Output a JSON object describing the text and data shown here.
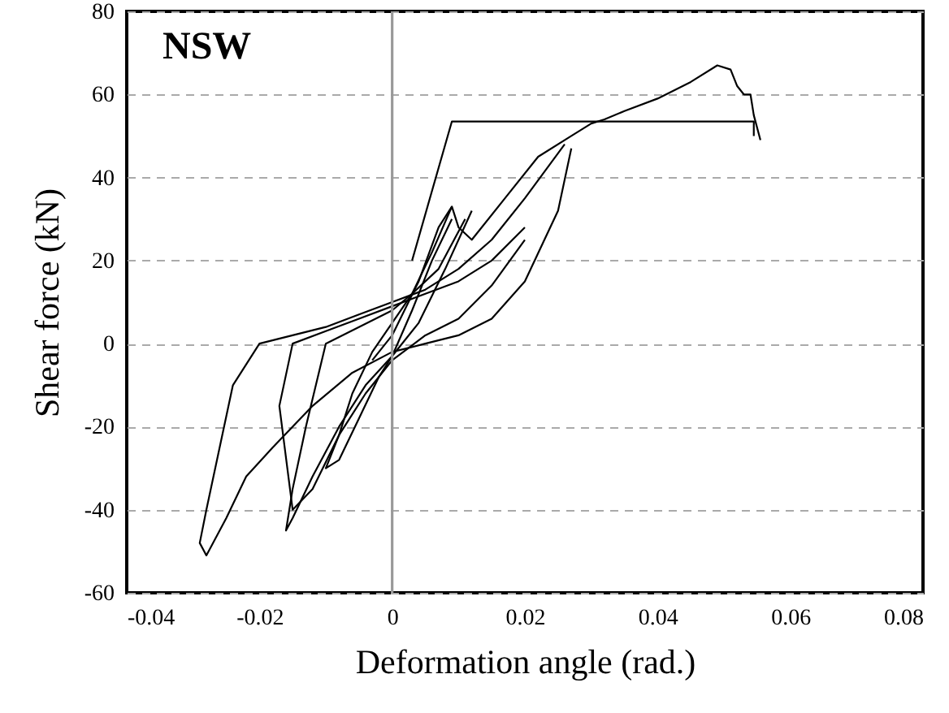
{
  "chart_data": {
    "type": "line",
    "xlabel": "Deformation angle (rad.)",
    "ylabel": "Shear force (kN)",
    "annotations": [
      "NSW"
    ],
    "xlim": [
      -0.04,
      0.08
    ],
    "xticks": [
      -0.04,
      -0.02,
      0,
      0.02,
      0.04,
      0.06,
      0.08
    ],
    "ylim": [
      -60,
      80
    ],
    "yticks": [
      -60,
      -40,
      -20,
      0,
      20,
      40,
      60,
      80
    ],
    "grid": "y",
    "line_style": "solid",
    "ref_lines": [
      {
        "axis": "x",
        "value": 0,
        "color": "#999999"
      }
    ],
    "series": [
      {
        "color": "#000000",
        "x": [
          0.009,
          0.006,
          0.003,
          0,
          -0.003,
          -0.006,
          -0.008,
          -0.01,
          -0.008,
          -0.005,
          -0.002,
          0,
          0.003,
          0.006,
          0.009
        ],
        "values": [
          33,
          22,
          12,
          5,
          -2,
          -12,
          -22,
          -30,
          -28,
          -18,
          -8,
          -3,
          8,
          20,
          30
        ]
      },
      {
        "color": "#000000",
        "x": [
          0.011,
          0.007,
          0.003,
          0,
          -0.005,
          -0.01,
          -0.013,
          -0.015,
          -0.016,
          -0.015,
          -0.012,
          -0.008,
          -0.004,
          0,
          0.004,
          0.008,
          0.012
        ],
        "values": [
          30,
          18,
          12,
          8,
          4,
          0,
          -20,
          -35,
          -45,
          -42,
          -32,
          -20,
          -10,
          -3,
          5,
          18,
          32
        ]
      },
      {
        "color": "#000000",
        "x": [
          0.02,
          0.015,
          0.01,
          0.005,
          0,
          -0.005,
          -0.01,
          -0.015,
          -0.017,
          -0.015,
          -0.012,
          -0.008,
          -0.004,
          0,
          0.005,
          0.01,
          0.015,
          0.02
        ],
        "values": [
          28,
          20,
          15,
          12,
          9,
          6,
          3,
          0,
          -15,
          -40,
          -35,
          -22,
          -12,
          -4,
          2,
          6,
          14,
          25
        ]
      },
      {
        "color": "#000000",
        "x": [
          0.026,
          0.02,
          0.015,
          0.01,
          0.005,
          0,
          -0.005,
          -0.01,
          -0.015,
          -0.02,
          -0.024,
          -0.026,
          -0.028,
          -0.029,
          -0.028,
          -0.025,
          -0.022,
          -0.018,
          -0.012,
          -0.006,
          0,
          0.005,
          0.01,
          0.015,
          0.02,
          0.025,
          0.027
        ],
        "values": [
          48,
          35,
          25,
          18,
          13,
          10,
          7,
          4,
          2,
          0,
          -10,
          -25,
          -40,
          -48,
          -51,
          -42,
          -32,
          -25,
          -15,
          -7,
          -2,
          0,
          2,
          6,
          15,
          32,
          47
        ]
      },
      {
        "color": "#000000",
        "x": [
          0.003,
          0.009,
          0.0545,
          0.0545
        ],
        "values": [
          20,
          53.5,
          53.5,
          50
        ]
      },
      {
        "color": "#000000",
        "x": [
          -0.003,
          0,
          0.004,
          0.007,
          0.009,
          0.01,
          0.012,
          0.017,
          0.022,
          0.027,
          0.03,
          0.032,
          0.035,
          0.04,
          0.045,
          0.049,
          0.051,
          0.052,
          0.053,
          0.054,
          0.0545,
          0.0555
        ],
        "values": [
          -4,
          2,
          15,
          28,
          33,
          28,
          25,
          35,
          45,
          50,
          53,
          54,
          56,
          59,
          63,
          67,
          66,
          62,
          60,
          60,
          55,
          49
        ]
      }
    ]
  }
}
